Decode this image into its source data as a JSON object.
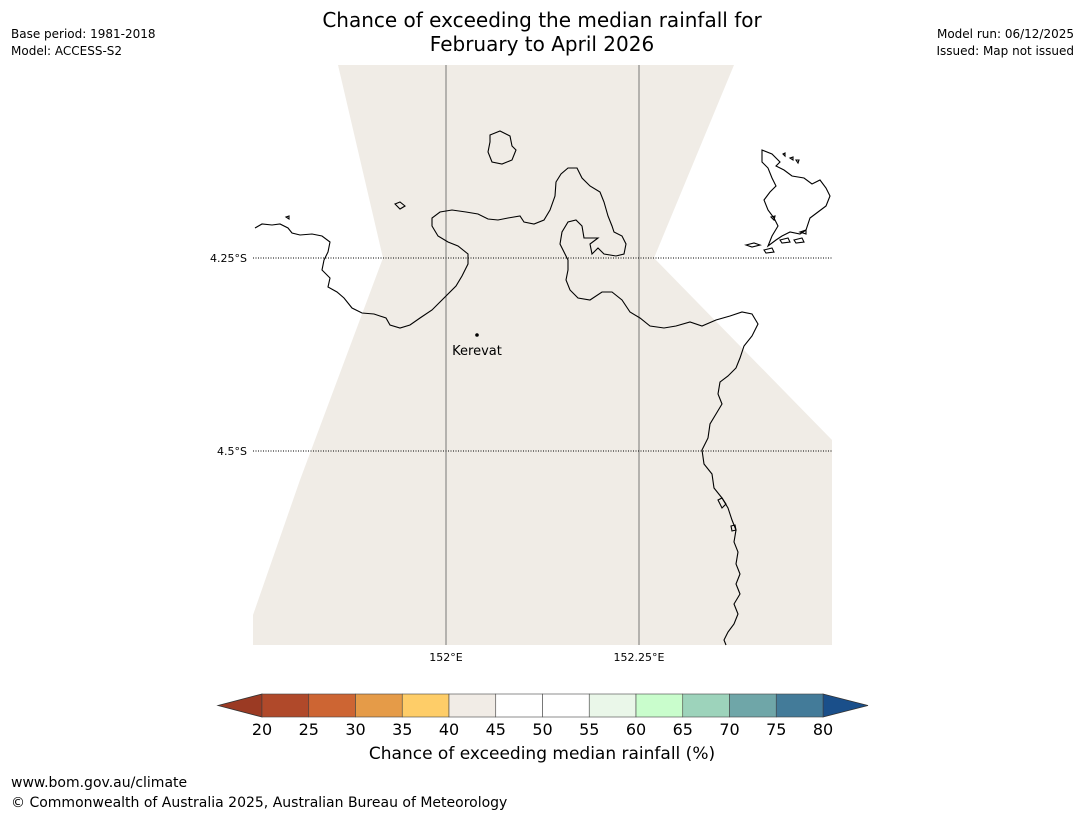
{
  "header": {
    "base_period": "Base period: 1981-2018",
    "model": "Model: ACCESS-S2",
    "model_run": "Model run: 06/12/2025",
    "issued": "Issued: Map not issued",
    "title_line1": "Chance of exceeding the median rainfall for",
    "title_line2": "February to April 2026"
  },
  "map": {
    "latitude_labels": [
      "4.25°S",
      "4.5°S"
    ],
    "longitude_labels": [
      "152°E",
      "152.25°E"
    ],
    "places": [
      {
        "name": "Kerevat"
      }
    ],
    "fill_color": "#f0ece6",
    "coast_color": "#000000"
  },
  "colorbar": {
    "title": "Chance of exceeding median rainfall (%)",
    "ticks": [
      "20",
      "25",
      "30",
      "35",
      "40",
      "45",
      "50",
      "55",
      "60",
      "65",
      "70",
      "75",
      "80"
    ],
    "under_color": "#9b3a23",
    "over_color": "#1a4f8a",
    "colors": [
      "#b0492a",
      "#cd6533",
      "#e59b48",
      "#fecd68",
      "#f1ece6",
      "#ffffff",
      "#ffffff",
      "#eaf7e9",
      "#c9fdcc",
      "#9dd3bb",
      "#6fa6a8",
      "#437b99"
    ]
  },
  "footer": {
    "url": "www.bom.gov.au/climate",
    "copyright": "© Commonwealth of Australia 2025, Australian Bureau of Meteorology"
  }
}
